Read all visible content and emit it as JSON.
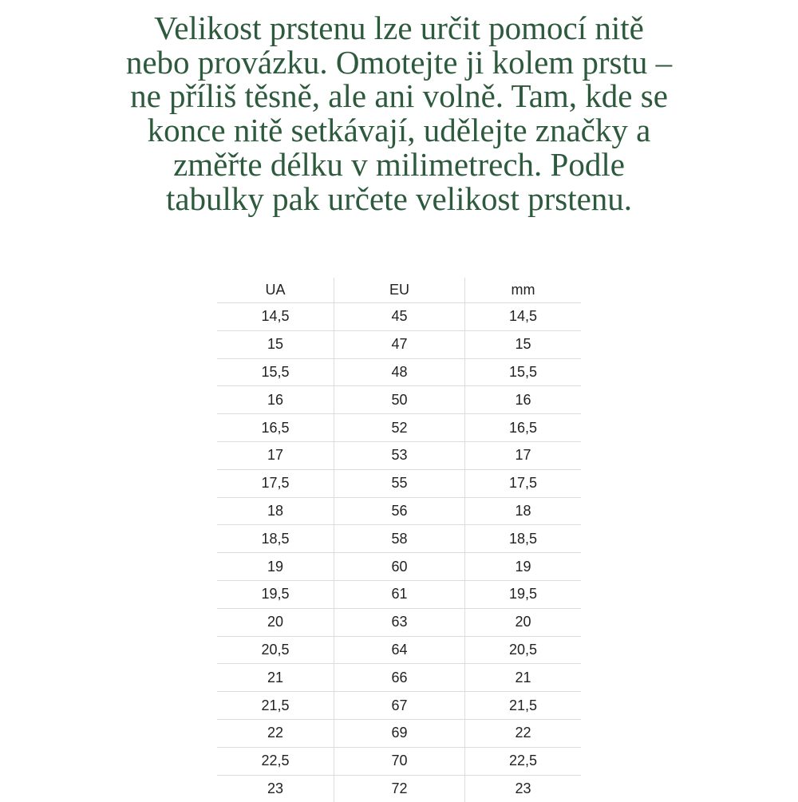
{
  "intro_lines": [
    "Velikost prstenu lze určit pomocí nitě",
    "nebo provázku. Omotejte ji kolem prstu –",
    "ne příliš těsně, ale ani volně. Tam, kde se",
    "konce nitě setkávají, udělejte značky a",
    "změřte délku v milimetrech. Podle",
    "tabulky pak určete velikost prstenu."
  ],
  "table": {
    "headers": [
      "UA",
      "EU",
      "mm"
    ],
    "rows": [
      [
        "14,5",
        "45",
        "14,5"
      ],
      [
        "15",
        "47",
        "15"
      ],
      [
        "15,5",
        "48",
        "15,5"
      ],
      [
        "16",
        "50",
        "16"
      ],
      [
        "16,5",
        "52",
        "16,5"
      ],
      [
        "17",
        "53",
        "17"
      ],
      [
        "17,5",
        "55",
        "17,5"
      ],
      [
        "18",
        "56",
        "18"
      ],
      [
        "18,5",
        "58",
        "18,5"
      ],
      [
        "19",
        "60",
        "19"
      ],
      [
        "19,5",
        "61",
        "19,5"
      ],
      [
        "20",
        "63",
        "20"
      ],
      [
        "20,5",
        "64",
        "20,5"
      ],
      [
        "21",
        "66",
        "21"
      ],
      [
        "21,5",
        "67",
        "21,5"
      ],
      [
        "22",
        "69",
        "22"
      ],
      [
        "22,5",
        "70",
        "22,5"
      ],
      [
        "23",
        "72",
        "23"
      ]
    ]
  },
  "colors": {
    "text_green": "#2d5a3d"
  }
}
